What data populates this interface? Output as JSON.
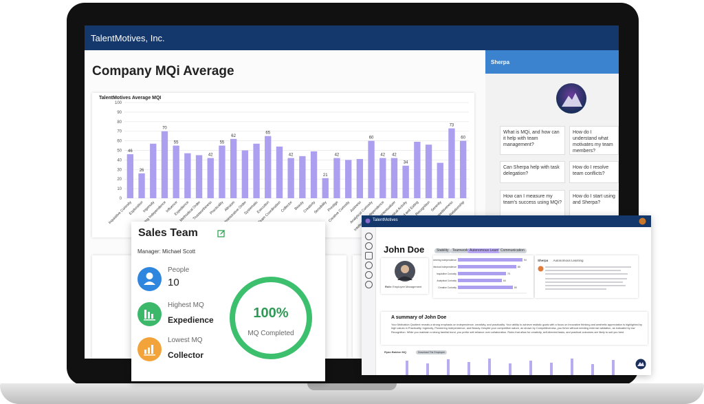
{
  "app": {
    "title": "TalentMotives, Inc."
  },
  "page": {
    "title": "Company MQi Average"
  },
  "chart_data": {
    "type": "bar",
    "title": "TalentMotives Average MQI",
    "ylim": [
      0,
      100
    ],
    "yticks": [
      0,
      10,
      20,
      30,
      40,
      50,
      60,
      70,
      80,
      90,
      100
    ],
    "categories": [
      "Inquisitive Curiosity",
      "Exploration",
      "Ingenuity",
      "Pioneering Independence",
      "Influence",
      "Expedience",
      "Methodical Order",
      "Trustworthiness",
      "Practicality",
      "Altruism",
      "Administrative Order",
      "Systematic",
      "Execution",
      "Team Coordination",
      "Collector",
      "Beauty",
      "Creativity",
      "Sensibility",
      "Prestige",
      "Creative Curiosity",
      "Justness",
      "Analytical Curiosity",
      "Intellectual Independence",
      "Contextualizer",
      "Physical Activity",
      "Food and Eating",
      "Recognition",
      "Serenity",
      "Competitiveness",
      "Family Relationship"
    ],
    "values": [
      46,
      26,
      57,
      70,
      55,
      47,
      45,
      42,
      55,
      62,
      50,
      57,
      65,
      54,
      42,
      44,
      49,
      21,
      42,
      40,
      41,
      60,
      42,
      42,
      34,
      59,
      56,
      37,
      73,
      60
    ],
    "labels": [
      "46",
      "26",
      "",
      "70",
      "55",
      "",
      "",
      "42",
      "55",
      "62",
      "",
      "",
      "65",
      "",
      "42",
      "",
      "",
      "21",
      "42",
      "",
      "",
      "60",
      "42",
      "42",
      "34",
      "",
      "",
      "",
      "73",
      "60"
    ]
  },
  "sherpa": {
    "title": "Sherpa",
    "prompts": [
      "What is MQi, and how can it help with team management?",
      "How do I understand what motivates my team members?",
      "Can Sherpa help with task delegation?",
      "How do I resolve team conflicts?",
      "How can I measure my team's success using MQi?",
      "How do I start using and Sherpa?"
    ]
  },
  "sales": {
    "title": "Sales Team",
    "manager": "Manager: Michael Scott",
    "people_label": "People",
    "people_value": "10",
    "highest_label": "Highest MQ",
    "highest_value": "Expedience",
    "lowest_label": "Lowest MQ",
    "lowest_value": "Collector",
    "completion_value": "100%",
    "completion_label": "MQ Completed"
  },
  "profile": {
    "app_title": "TalentMotives",
    "name": "John Doe",
    "tags": [
      "Stability",
      "Teamwork",
      "Autonomous Learning",
      "Communication"
    ],
    "role_label": "Role:",
    "role_value": "Employee Management",
    "bars": [
      {
        "label": "Pioneering Independence",
        "value": 94
      },
      {
        "label": "Intellectual Independence",
        "value": 85
      },
      {
        "label": "Inquisitive Curiosity",
        "value": 70
      },
      {
        "label": "Analytical Curiosity",
        "value": 64
      },
      {
        "label": "Creative Curiosity",
        "value": 80
      }
    ],
    "sherpa_label": "Sherpa",
    "sherpa_topic": "Autonomous Learning",
    "summary_title": "A summary of",
    "summary_name": "John Doe",
    "summary_text": "Your Motivation Quotient reveals a strong emphasis on independence, creativity, and practicality. Your ability to achieve realistic goals with a focus on innovative thinking and aesthetic appreciation is highlighted by high values in Practicality, Ingenuity, Pioneering Independence, and Beauty. Despite your competitive nature, as shown by Competitiveness, you thrive without needing external validation, as indicated by low Recognition. While you maintain a strong familial bond, you prefer self-reliance over collaboration. Roles that allow for creativity, self-directed tasks, and practical outcomes are likely to suit you best.",
    "mq_label": "Ryan Baldon MQ",
    "mq_button": "Download The Employee"
  },
  "colors": {
    "bar": "#ad9ff0",
    "navy": "#14386b",
    "sherpa": "#3b82cf",
    "green": "#3cc06e"
  }
}
